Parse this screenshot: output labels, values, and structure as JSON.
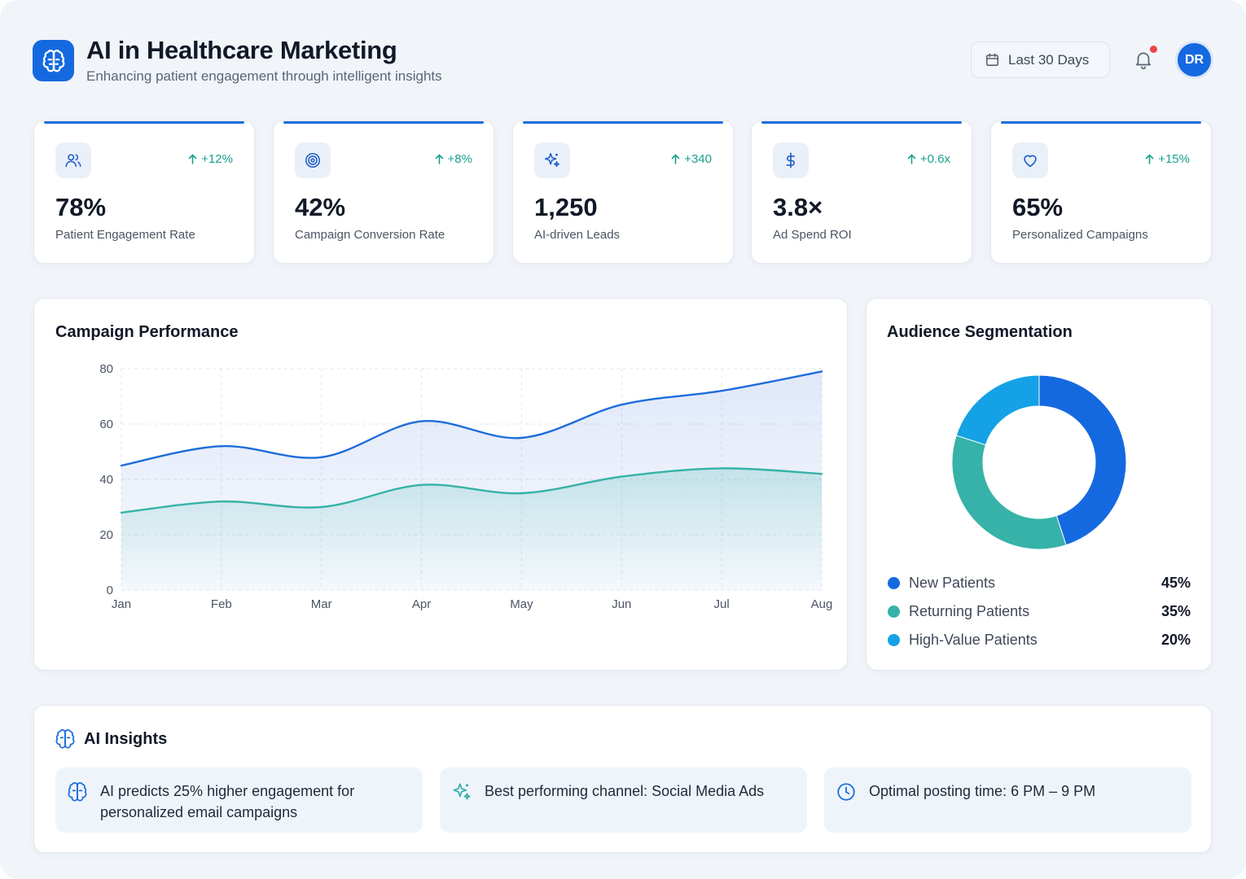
{
  "header": {
    "title": "AI in Healthcare Marketing",
    "subtitle": "Enhancing patient engagement through intelligent insights",
    "date_range": "Last 30 Days",
    "avatar_initials": "DR",
    "notification_dot": true
  },
  "stats": [
    {
      "icon": "users-icon",
      "change": "+12%",
      "value": "78%",
      "label": "Patient Engagement Rate"
    },
    {
      "icon": "target-icon",
      "change": "+8%",
      "value": "42%",
      "label": "Campaign Conversion Rate"
    },
    {
      "icon": "sparkles-icon",
      "change": "+340",
      "value": "1,250",
      "label": "AI-driven Leads"
    },
    {
      "icon": "dollar-icon",
      "change": "+0.6x",
      "value": "3.8×",
      "label": "Ad Spend ROI"
    },
    {
      "icon": "heart-icon",
      "change": "+15%",
      "value": "65%",
      "label": "Personalized Campaigns"
    }
  ],
  "campaign": {
    "title": "Campaign Performance"
  },
  "audience": {
    "title": "Audience Segmentation"
  },
  "insights": {
    "title": "AI Insights",
    "items": [
      {
        "icon": "brain-icon",
        "text": "AI predicts 25% higher engagement for personalized email campaigns"
      },
      {
        "icon": "sparkles-icon",
        "text": "Best performing channel: Social Media Ads"
      },
      {
        "icon": "clock-icon",
        "text": "Optimal posting time: 6 PM – 9 PM"
      }
    ]
  },
  "colors": {
    "primary": "#1569e0",
    "teal": "#36b2a8",
    "sky": "#14a1e6",
    "positive": "#1a9f8e"
  },
  "chart_data": [
    {
      "type": "area",
      "title": "Campaign Performance",
      "categories": [
        "Jan",
        "Feb",
        "Mar",
        "Apr",
        "May",
        "Jun",
        "Jul",
        "Aug"
      ],
      "series": [
        {
          "values": [
            45,
            52,
            48,
            61,
            55,
            67,
            72,
            79
          ]
        },
        {
          "values": [
            28,
            32,
            30,
            38,
            35,
            41,
            44,
            42
          ]
        }
      ],
      "ylim": [
        0,
        80
      ],
      "yticks": [
        0,
        20,
        40,
        60,
        80
      ],
      "grid": true,
      "colors": [
        "#1e6ddb",
        "#36b2a8"
      ]
    },
    {
      "type": "pie",
      "title": "Audience Segmentation",
      "donut": true,
      "slices": [
        {
          "label": "New Patients",
          "value": 45,
          "display": "45%",
          "color": "#1569e0"
        },
        {
          "label": "Returning Patients",
          "value": 35,
          "display": "35%",
          "color": "#36b2a8"
        },
        {
          "label": "High-Value Patients",
          "value": 20,
          "display": "20%",
          "color": "#14a1e6"
        }
      ]
    }
  ]
}
